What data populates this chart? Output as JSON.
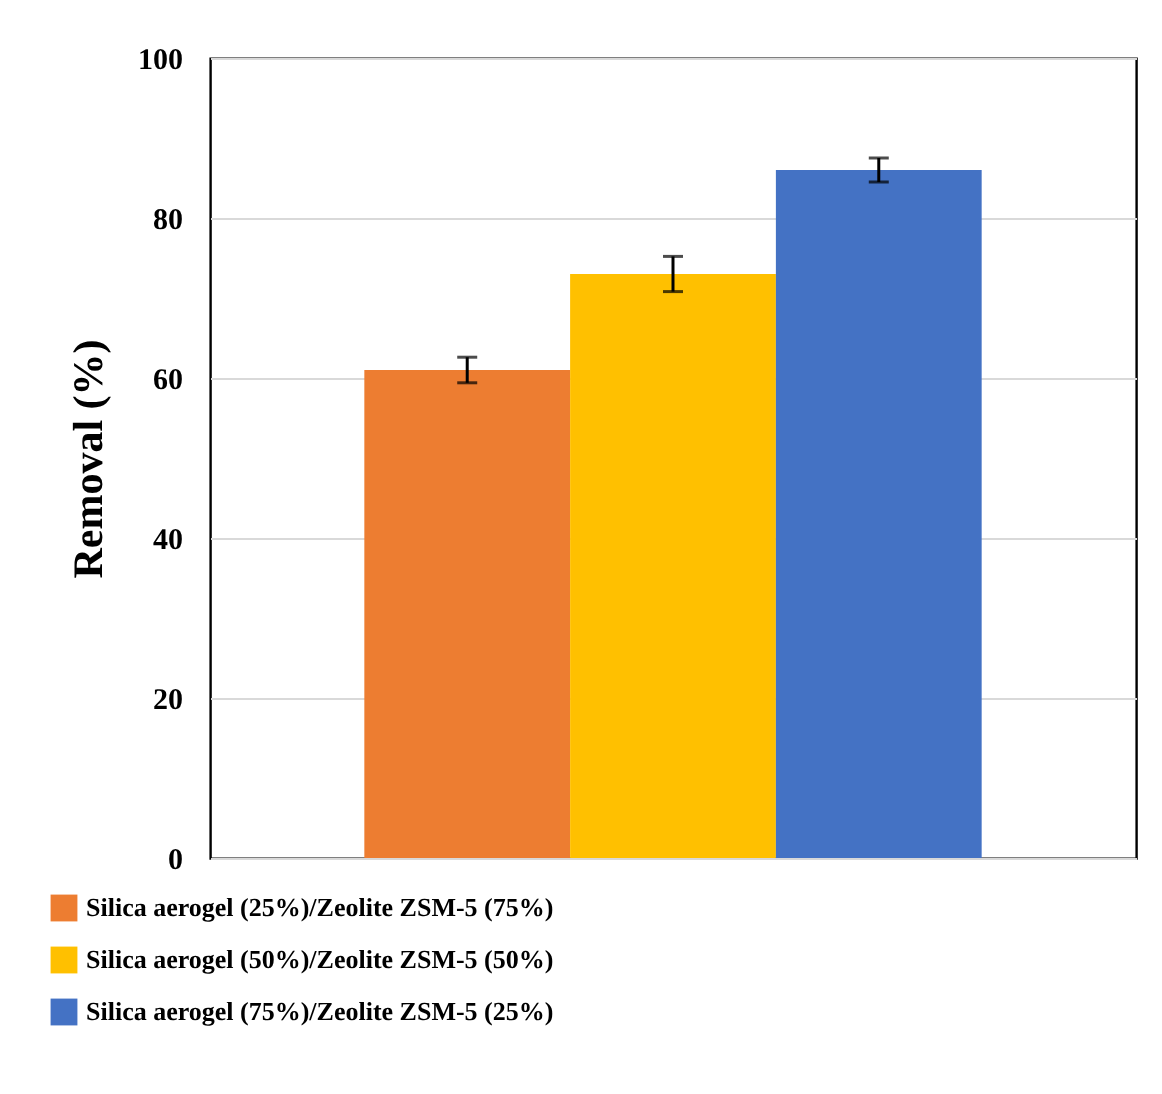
{
  "chart_data": {
    "type": "bar",
    "ylabel": "Removal (%)",
    "categories": [
      null
    ],
    "series": [
      {
        "name": "Silica aerogel (25%)/Zeolite ZSM-5 (75%)",
        "color": "#ed7d31",
        "values": [
          61
        ],
        "errors": [
          1.6
        ]
      },
      {
        "name": "Silica aerogel (50%)/Zeolite ZSM-5 (50%)",
        "color": "#ffc000",
        "values": [
          73
        ],
        "errors": [
          2.2
        ]
      },
      {
        "name": "Silica aerogel (75%)/Zeolite ZSM-5 (25%)",
        "color": "#4472c4",
        "values": [
          86
        ],
        "errors": [
          1.5
        ]
      }
    ],
    "ylim": [
      0,
      100
    ],
    "yticks": [
      0,
      20,
      40,
      60,
      80,
      100
    ],
    "grid": "y",
    "legend": "bottom left"
  }
}
